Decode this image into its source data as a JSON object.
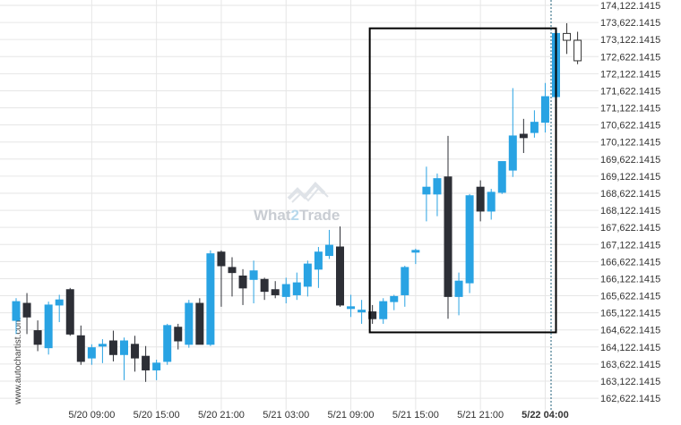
{
  "watermark": {
    "brand_left": "What",
    "brand_digit": "2",
    "brand_right": "Trade",
    "side_text": "www.autochartist.com"
  },
  "colors": {
    "bull": "#29a3e3",
    "bear": "#2d2f36",
    "grid": "#e6e6e6",
    "box": "#000000",
    "marker_line": "#1f5f7a",
    "watermark": "#c9cdd3"
  },
  "chart_data": {
    "type": "candlestick",
    "title": "",
    "xlabel": "",
    "ylabel": "",
    "ylim": [
      162450,
      174200
    ],
    "y_ticks": [
      "174,122.1415",
      "173,622.1415",
      "173,122.1415",
      "172,622.1415",
      "172,122.1415",
      "171,622.1415",
      "171,122.1415",
      "170,622.1415",
      "170,122.1415",
      "169,622.1415",
      "169,122.1415",
      "168,622.1415",
      "168,122.1415",
      "167,622.1415",
      "167,122.1415",
      "166,622.1415",
      "166,122.1415",
      "165,622.1415",
      "165,122.1415",
      "164,622.1415",
      "164,122.1415",
      "163,622.1415",
      "163,122.1415",
      "162,622.1415"
    ],
    "x_ticks": [
      {
        "label": "5/20 09:00",
        "index": 7
      },
      {
        "label": "5/20 15:00",
        "index": 13
      },
      {
        "label": "5/20 21:00",
        "index": 19
      },
      {
        "label": "5/21 03:00",
        "index": 25
      },
      {
        "label": "5/21 09:00",
        "index": 31
      },
      {
        "label": "5/21 15:00",
        "index": 37
      },
      {
        "label": "5/21 21:00",
        "index": 43
      },
      {
        "label": "5/22 04:00",
        "index": 49,
        "bold": true
      }
    ],
    "candles": [
      {
        "o": 164900,
        "h": 165550,
        "l": 164500,
        "c": 165450
      },
      {
        "o": 165400,
        "h": 165700,
        "l": 164500,
        "c": 165000
      },
      {
        "o": 164600,
        "h": 164900,
        "l": 164000,
        "c": 164200
      },
      {
        "o": 164100,
        "h": 165450,
        "l": 163900,
        "c": 165350
      },
      {
        "o": 165350,
        "h": 165650,
        "l": 164850,
        "c": 165500
      },
      {
        "o": 165800,
        "h": 165850,
        "l": 164450,
        "c": 164500
      },
      {
        "o": 164450,
        "h": 164750,
        "l": 163600,
        "c": 163700
      },
      {
        "o": 163800,
        "h": 164200,
        "l": 163600,
        "c": 164100
      },
      {
        "o": 164150,
        "h": 164350,
        "l": 163650,
        "c": 164200
      },
      {
        "o": 164300,
        "h": 164600,
        "l": 163700,
        "c": 163900
      },
      {
        "o": 163900,
        "h": 164400,
        "l": 163150,
        "c": 164300
      },
      {
        "o": 164200,
        "h": 164450,
        "l": 163400,
        "c": 163800
      },
      {
        "o": 163850,
        "h": 164150,
        "l": 163100,
        "c": 163450
      },
      {
        "o": 163450,
        "h": 163750,
        "l": 163150,
        "c": 163650
      },
      {
        "o": 163700,
        "h": 164800,
        "l": 163600,
        "c": 164750
      },
      {
        "o": 164700,
        "h": 164800,
        "l": 164050,
        "c": 164300
      },
      {
        "o": 164200,
        "h": 165500,
        "l": 164100,
        "c": 165400
      },
      {
        "o": 165400,
        "h": 165550,
        "l": 164200,
        "c": 164200
      },
      {
        "o": 164200,
        "h": 166950,
        "l": 164150,
        "c": 166850
      },
      {
        "o": 166900,
        "h": 166950,
        "l": 165300,
        "c": 166500
      },
      {
        "o": 166450,
        "h": 166750,
        "l": 165600,
        "c": 166300
      },
      {
        "o": 166200,
        "h": 166400,
        "l": 165350,
        "c": 165850
      },
      {
        "o": 166100,
        "h": 166650,
        "l": 165400,
        "c": 166350
      },
      {
        "o": 166100,
        "h": 166150,
        "l": 165500,
        "c": 165750
      },
      {
        "o": 165800,
        "h": 166050,
        "l": 165550,
        "c": 165650
      },
      {
        "o": 165600,
        "h": 166150,
        "l": 165400,
        "c": 165950
      },
      {
        "o": 165650,
        "h": 166300,
        "l": 165500,
        "c": 166000
      },
      {
        "o": 165900,
        "h": 166650,
        "l": 165600,
        "c": 166550
      },
      {
        "o": 166400,
        "h": 167050,
        "l": 165850,
        "c": 166900
      },
      {
        "o": 166800,
        "h": 167550,
        "l": 166700,
        "c": 167100
      },
      {
        "o": 167050,
        "h": 167650,
        "l": 165300,
        "c": 165350
      },
      {
        "o": 165300,
        "h": 165650,
        "l": 165000,
        "c": 165300
      },
      {
        "o": 165200,
        "h": 165500,
        "l": 164800,
        "c": 165200
      },
      {
        "o": 165150,
        "h": 165350,
        "l": 164800,
        "c": 164950
      },
      {
        "o": 164950,
        "h": 165550,
        "l": 164800,
        "c": 165450
      },
      {
        "o": 165450,
        "h": 165650,
        "l": 165200,
        "c": 165600
      },
      {
        "o": 165650,
        "h": 166500,
        "l": 165300,
        "c": 166450
      },
      {
        "o": 166900,
        "h": 167000,
        "l": 166550,
        "c": 166950
      },
      {
        "o": 168600,
        "h": 169400,
        "l": 167800,
        "c": 168800
      },
      {
        "o": 168600,
        "h": 169200,
        "l": 167950,
        "c": 169050
      },
      {
        "o": 169100,
        "h": 170300,
        "l": 164950,
        "c": 165600
      },
      {
        "o": 165600,
        "h": 166300,
        "l": 165050,
        "c": 166050
      },
      {
        "o": 166000,
        "h": 168600,
        "l": 165700,
        "c": 168550
      },
      {
        "o": 168800,
        "h": 169000,
        "l": 167800,
        "c": 168100
      },
      {
        "o": 168100,
        "h": 168750,
        "l": 167850,
        "c": 168650
      },
      {
        "o": 168650,
        "h": 169500,
        "l": 168600,
        "c": 169550
      },
      {
        "o": 169300,
        "h": 171700,
        "l": 169100,
        "c": 170300
      },
      {
        "o": 170350,
        "h": 170800,
        "l": 169800,
        "c": 170250
      },
      {
        "o": 170400,
        "h": 171050,
        "l": 170250,
        "c": 170700
      },
      {
        "o": 170700,
        "h": 171850,
        "l": 170400,
        "c": 171450
      },
      {
        "o": 171450,
        "h": 173450,
        "l": 171450,
        "c": 173300
      },
      {
        "o": 173100,
        "h": 173600,
        "l": 172700,
        "c": 173300
      },
      {
        "o": 172500,
        "h": 173350,
        "l": 172400,
        "c": 173100
      }
    ],
    "hollow_last": 2,
    "breakout_box": {
      "start_index": 33,
      "end_index": 50,
      "top": 173450,
      "bottom": 164550
    },
    "marker_index": 50
  }
}
